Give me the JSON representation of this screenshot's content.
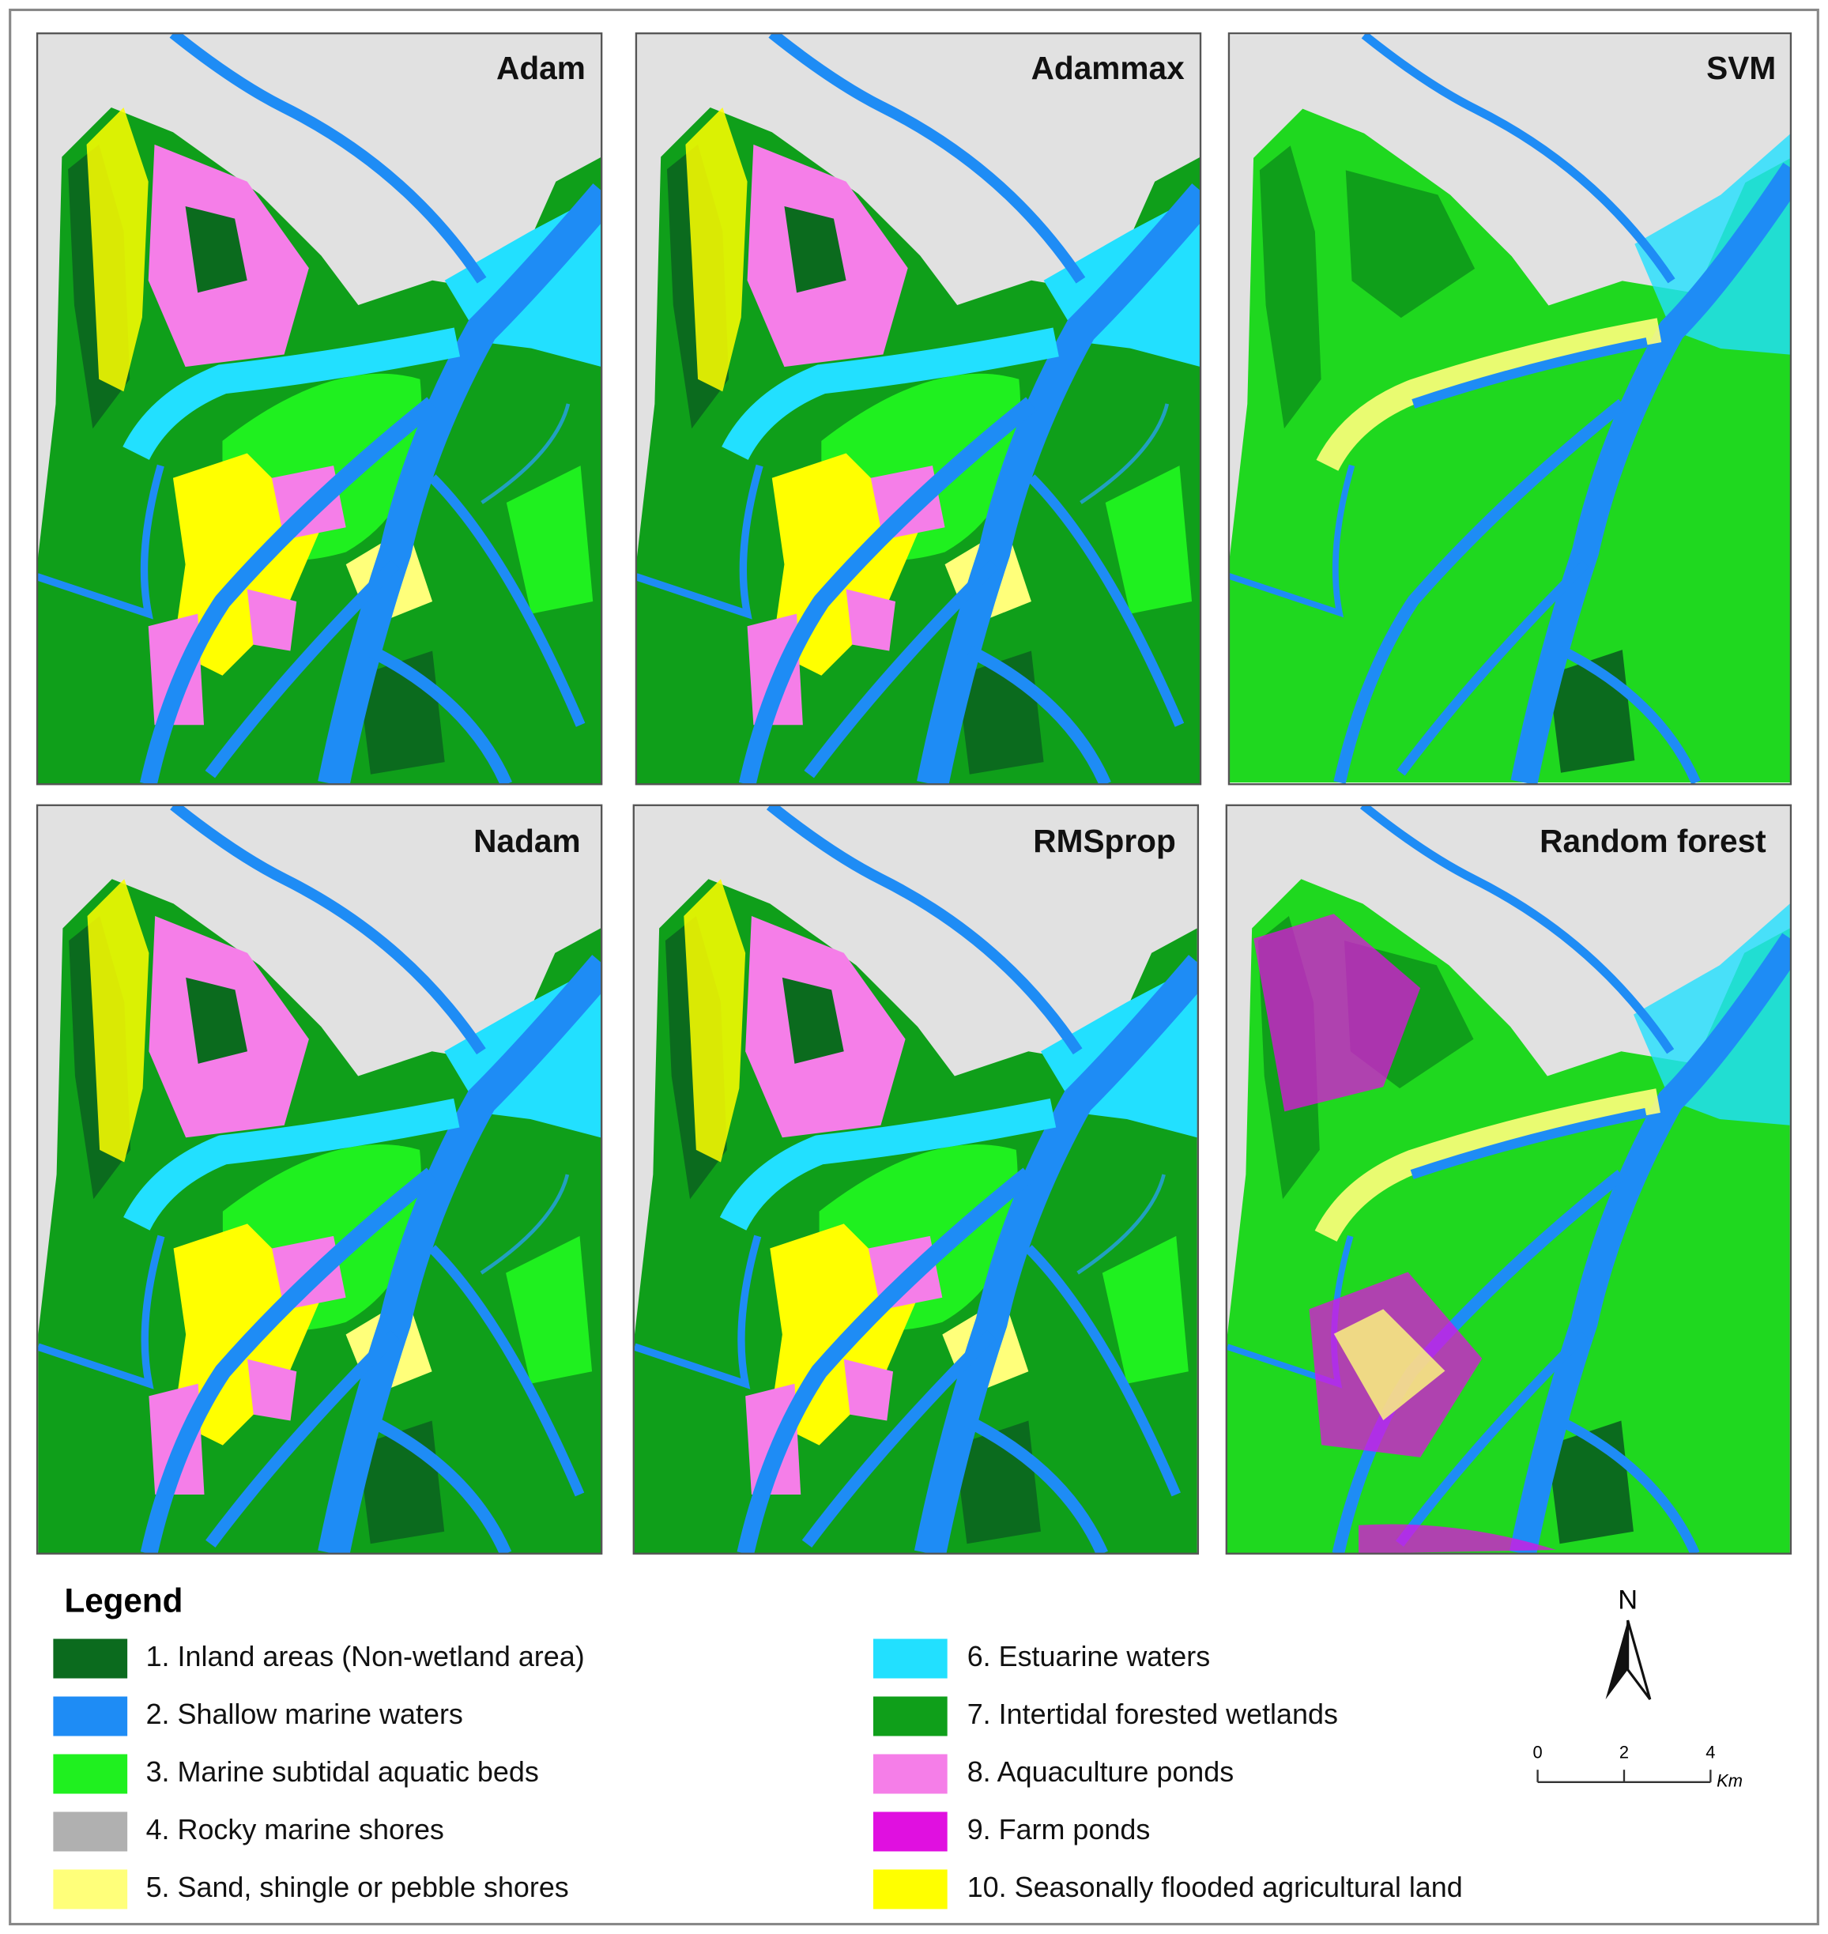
{
  "panels": [
    {
      "title": "Adam"
    },
    {
      "title": "Adammax"
    },
    {
      "title": "SVM"
    },
    {
      "title": "Nadam"
    },
    {
      "title": "RMSprop"
    },
    {
      "title": "Random forest"
    }
  ],
  "legend": {
    "title": "Legend",
    "items": [
      {
        "label": "1. Inland areas (Non-wetland area)",
        "color": "#0b6b1e"
      },
      {
        "label": "2. Shallow marine waters",
        "color": "#1e8cf5"
      },
      {
        "label": "3. Marine subtidal aquatic beds",
        "color": "#1ff01f"
      },
      {
        "label": "4. Rocky marine shores",
        "color": "#b0b0b0"
      },
      {
        "label": "5. Sand, shingle or pebble shores",
        "color": "#ffff7a"
      },
      {
        "label": "6. Estuarine waters",
        "color": "#22e0ff"
      },
      {
        "label": "7. Intertidal forested wetlands",
        "color": "#0f9f1a"
      },
      {
        "label": "8.  Aquaculture ponds",
        "color": "#f57ee8"
      },
      {
        "label": "9. Farm ponds",
        "color": "#e010e0"
      },
      {
        "label": "10. Seasonally flooded agricultural land",
        "color": "#ffff00"
      }
    ]
  },
  "north_arrow": {
    "label": "N"
  },
  "scale_bar": {
    "ticks": [
      "0",
      "2",
      "4"
    ],
    "unit": "Km"
  }
}
